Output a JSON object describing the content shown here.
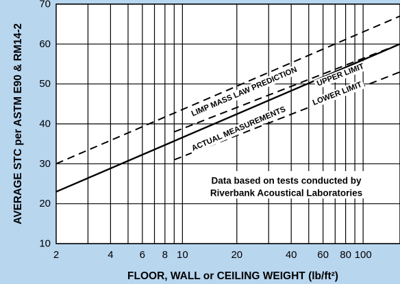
{
  "chart_data": {
    "type": "line",
    "title": "",
    "xlabel": "FLOOR, WALL or CEILING WEIGHT (lb/ft²)",
    "ylabel": "AVERAGE STC per ASTM E90 & RM14-2",
    "x_scale": "log",
    "xlim": [
      2,
      160
    ],
    "ylim": [
      10,
      70
    ],
    "x_ticks": [
      "2",
      "4",
      "6",
      "8",
      "10",
      "20",
      "40",
      "60",
      "80",
      "100"
    ],
    "y_ticks": [
      "10",
      "20",
      "30",
      "40",
      "50",
      "60",
      "70"
    ],
    "x_tick_values": [
      2,
      4,
      6,
      8,
      10,
      20,
      40,
      60,
      80,
      100
    ],
    "y_tick_values": [
      10,
      20,
      30,
      40,
      50,
      60,
      70
    ],
    "x_grid": [
      3,
      5,
      7,
      9,
      30,
      50,
      70,
      90
    ],
    "grid": true,
    "series": [
      {
        "name": "LIMP MASS LAW PREDICTION",
        "style": "dashed",
        "x": [
          2,
          160
        ],
        "y": [
          30,
          67
        ]
      },
      {
        "name": "UPPER LIMIT",
        "style": "dashed",
        "x": [
          9,
          160
        ],
        "y": [
          38,
          60
        ]
      },
      {
        "name": "ACTUAL MEASUREMENTS",
        "style": "solid",
        "x": [
          2,
          160
        ],
        "y": [
          23,
          60
        ]
      },
      {
        "name": "LOWER LIMIT",
        "style": "dashed",
        "x": [
          9,
          160
        ],
        "y": [
          31,
          53
        ]
      }
    ],
    "annotations": [
      {
        "text": "LIMP MASS LAW PREDICTION",
        "x": 22,
        "y": 48
      },
      {
        "text": "UPPER LIMIT",
        "x": 75,
        "y": 52.2
      },
      {
        "text": "ACTUAL MEASUREMENTS",
        "x": 20.5,
        "y": 38.7
      },
      {
        "text": "LOWER LIMIT",
        "x": 72,
        "y": 47.5
      }
    ],
    "note": [
      "Data based on tests conducted by",
      "Riverbank Acoustical Laboratories"
    ],
    "colors": {
      "background": "#b9d6ef",
      "plot_area": "#ffffff",
      "lines": "#000000"
    }
  }
}
